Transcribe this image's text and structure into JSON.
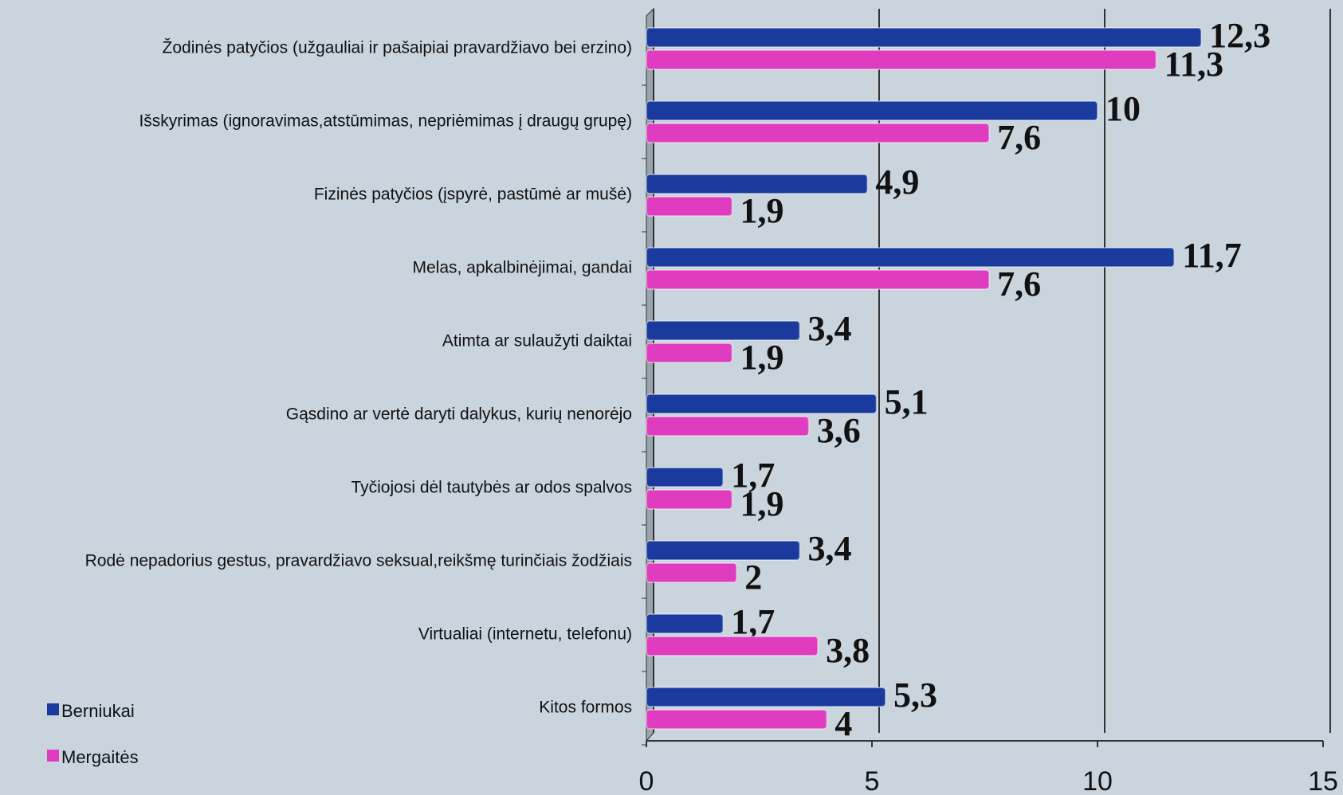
{
  "chart_data": {
    "type": "bar",
    "orientation": "horizontal",
    "categories": [
      "Žodinės patyčios (užgauliai ir pašaipiai pravardžiavo bei erzino)",
      "Išskyrimas (ignoravimas,atstūmimas, nepriėmimas į draugų grupę)",
      "Fizinės patyčios (įspyrė, pastūmė ar mušė)",
      "Melas, apkalbinėjimai, gandai",
      "Atimta ar sulaužyti daiktai",
      "Gąsdino ar vertė daryti dalykus, kurių nenorėjo",
      "Tyčiojosi dėl tautybės ar odos spalvos",
      "Rodė nepadorius gestus, pravardžiavo seksual,reikšmę turinčiais žodžiais",
      "Virtualiai (internetu, telefonu)",
      "Kitos formos"
    ],
    "series": [
      {
        "name": "Berniukai",
        "color": "#1a3a9e",
        "values": [
          12.3,
          10,
          4.9,
          11.7,
          3.4,
          5.1,
          1.7,
          3.4,
          1.7,
          5.3
        ],
        "value_labels": [
          "12,3",
          "10",
          "4,9",
          "11,7",
          "3,4",
          "5,1",
          "1,7",
          "3,4",
          "1,7",
          "5,3"
        ]
      },
      {
        "name": "Mergaitės",
        "color": "#e03cbf",
        "values": [
          11.3,
          7.6,
          1.9,
          7.6,
          1.9,
          3.6,
          1.9,
          2,
          3.8,
          4
        ],
        "value_labels": [
          "11,3",
          "7,6",
          "1,9",
          "7,6",
          "1,9",
          "3,6",
          "1,9",
          "2",
          "3,8",
          "4"
        ]
      }
    ],
    "xlim": [
      0,
      15
    ],
    "xticks": [
      0,
      5,
      10,
      15
    ],
    "grid": true,
    "legend": "bottom-left"
  }
}
